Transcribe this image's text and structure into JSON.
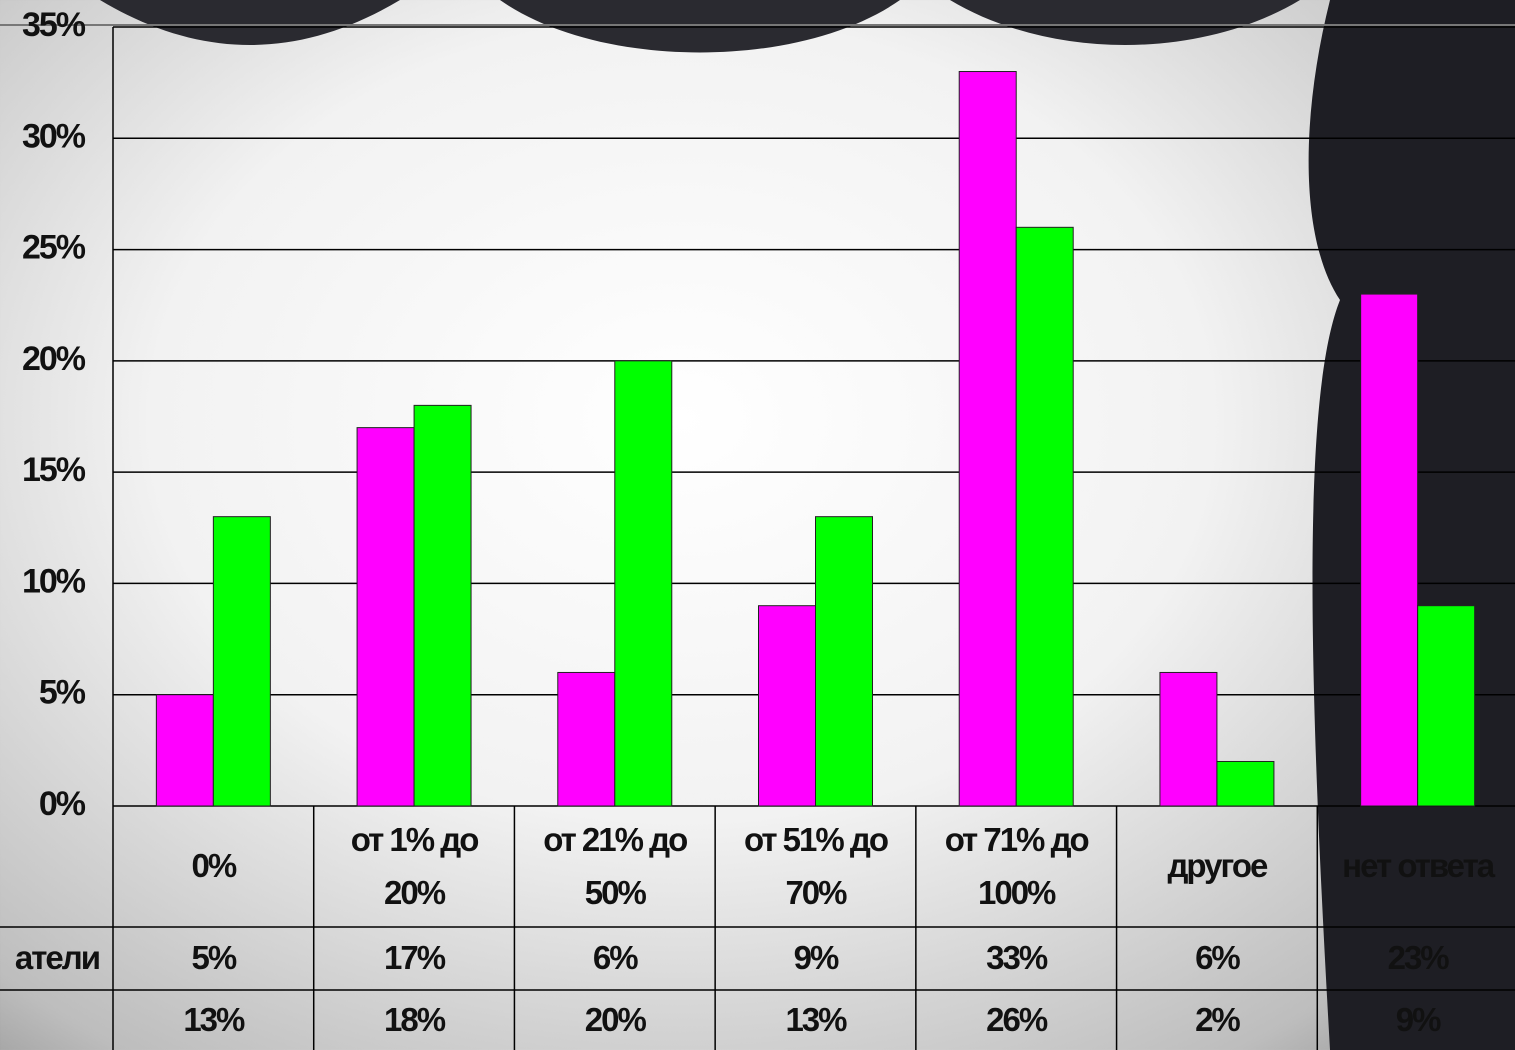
{
  "chart_data": {
    "type": "bar",
    "categories": [
      "0%",
      "от 1% до 20%",
      "от 21% до 50%",
      "от 51% до 70%",
      "от 71% до 100%",
      "другое",
      "нет ответа"
    ],
    "series": [
      {
        "name": "атели",
        "color": "#ff00ff",
        "values": [
          5,
          17,
          6,
          9,
          33,
          6,
          23
        ],
        "value_labels": [
          "5%",
          "17%",
          "6%",
          "9%",
          "33%",
          "6%",
          "23%"
        ]
      },
      {
        "color": "#00ff00",
        "values": [
          13,
          18,
          20,
          13,
          26,
          2,
          9
        ],
        "value_labels": [
          "13%",
          "18%",
          "20%",
          "13%",
          "26%",
          "2%",
          "9%"
        ]
      }
    ],
    "ylim": [
      0,
      35
    ],
    "yticks": [
      {
        "value": 0,
        "label": "0%"
      },
      {
        "value": 5,
        "label": "5%"
      },
      {
        "value": 10,
        "label": "10%"
      },
      {
        "value": 15,
        "label": "15%"
      },
      {
        "value": 20,
        "label": "20%"
      },
      {
        "value": 25,
        "label": "25%"
      },
      {
        "value": 30,
        "label": "30%"
      },
      {
        "value": 35,
        "label": "35%"
      }
    ],
    "grid": true
  }
}
